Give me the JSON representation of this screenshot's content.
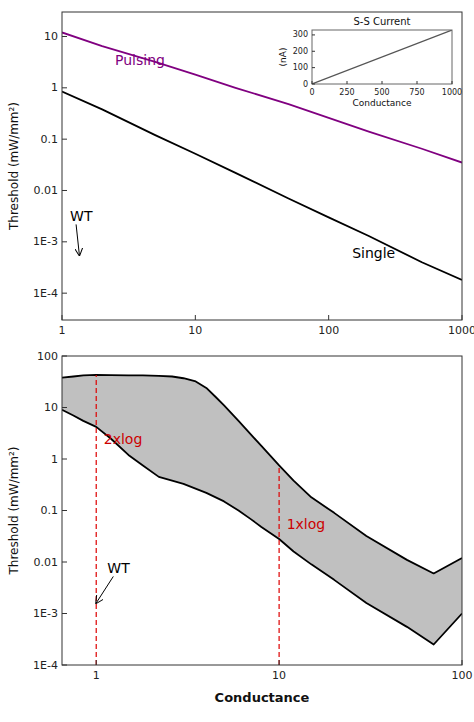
{
  "chart_data": [
    {
      "type": "line",
      "log": true,
      "y_label": "Threshold (mW/mm²)",
      "xlim": [
        1,
        1000
      ],
      "ylim": [
        3e-05,
        30
      ],
      "xticks": [
        1,
        10,
        100,
        1000
      ],
      "yticks": [
        {
          "value": 0.0001,
          "label": "1E-4"
        },
        {
          "value": 0.001,
          "label": "1E-3"
        },
        0.01,
        0.1,
        1,
        10
      ],
      "series": [
        {
          "color": "#000000",
          "x": [
            1,
            2,
            5,
            10,
            20,
            50,
            100,
            200,
            500,
            1000
          ],
          "values": [
            0.85,
            0.38,
            0.12,
            0.052,
            0.022,
            0.007,
            0.003,
            0.0013,
            0.0004,
            0.00018
          ]
        },
        {
          "color": "#800080",
          "x": [
            1,
            2,
            5,
            10,
            20,
            50,
            100,
            200,
            500,
            1000
          ],
          "values": [
            12,
            6.5,
            3.2,
            1.8,
            1.0,
            0.48,
            0.26,
            0.14,
            0.065,
            0.035
          ]
        }
      ],
      "annotations": [
        {
          "text": "Pulsing",
          "x": 2.5,
          "y": 3.5,
          "color": "#800080"
        },
        {
          "text": "Single",
          "x": 150,
          "y": 0.0006,
          "color": "#000000"
        },
        {
          "text": "WT",
          "x": 1.15,
          "y": 0.0025,
          "arrow_to": [
            1.35,
            0.00055
          ]
        }
      ]
    },
    {
      "type": "line",
      "title": "S-S Current",
      "x_label": "Conductance",
      "y_label": "(nA)",
      "xlim": [
        0,
        1000
      ],
      "ylim": [
        0,
        330
      ],
      "xticks": [
        0,
        250,
        500,
        750,
        1000
      ],
      "yticks": [
        0,
        100,
        200,
        300
      ],
      "x": [
        0,
        1000
      ],
      "series": [
        {
          "color": "#555555",
          "values": [
            0,
            330
          ]
        }
      ]
    },
    {
      "type": "band",
      "log": true,
      "color": "#c0c0c0",
      "x_label": "Conductance",
      "y_label": "Threshold (mW/mm²)",
      "xlim": [
        0.65,
        100
      ],
      "ylim": [
        0.0001,
        100
      ],
      "xticks": [
        1,
        10,
        100
      ],
      "yticks": [
        {
          "value": 0.0001,
          "label": "1E-4"
        },
        {
          "value": 0.001,
          "label": "1E-3"
        },
        0.01,
        0.1,
        1,
        10,
        100
      ],
      "series": [
        {
          "color": "#000000",
          "x": [
            0.65,
            0.75,
            0.85,
            1.0,
            1.2,
            1.5,
            1.8,
            2.2,
            2.6,
            3.0,
            3.5,
            4.0,
            4.5,
            5.0,
            6.0,
            7.0,
            8.0,
            10.0,
            12.0,
            15.0,
            20.0,
            30.0,
            50.0,
            70.0,
            100.0
          ],
          "values": [
            38.0,
            40.0,
            42.0,
            43.0,
            42.5,
            42.0,
            42.0,
            41.0,
            40.0,
            37.0,
            32.0,
            24.0,
            16.0,
            11.0,
            5.5,
            3.0,
            1.8,
            0.75,
            0.38,
            0.18,
            0.09,
            0.032,
            0.011,
            0.006,
            0.012
          ]
        },
        {
          "color": "#000000",
          "x": [
            0.65,
            0.75,
            0.85,
            1.0,
            1.2,
            1.5,
            1.8,
            2.2,
            2.6,
            3.0,
            4.0,
            5.0,
            6.0,
            7.0,
            8.0,
            10.0,
            12.0,
            15.0,
            20.0,
            30.0,
            50.0,
            70.0,
            100.0
          ],
          "values": [
            9.0,
            7.0,
            5.5,
            4.2,
            2.5,
            1.2,
            0.75,
            0.45,
            0.38,
            0.33,
            0.22,
            0.15,
            0.1,
            0.068,
            0.048,
            0.028,
            0.016,
            0.009,
            0.0045,
            0.0016,
            0.00055,
            0.00025,
            0.001
          ]
        }
      ],
      "reference_lines": [
        {
          "x": 1.0,
          "color": "#dd0000",
          "line_style": "dashed"
        },
        {
          "x": 10.0,
          "color": "#dd0000",
          "line_style": "dashed"
        }
      ],
      "annotations": [
        {
          "text": "2xlog",
          "x": 1.1,
          "y": 2.5,
          "color": "#cc0000"
        },
        {
          "text": "1xlog",
          "x": 11.0,
          "y": 0.055,
          "color": "#cc0000"
        },
        {
          "text": "WT",
          "x": 1.15,
          "y": 0.006,
          "arrow_to": [
            1.0,
            0.0016
          ]
        }
      ]
    }
  ]
}
